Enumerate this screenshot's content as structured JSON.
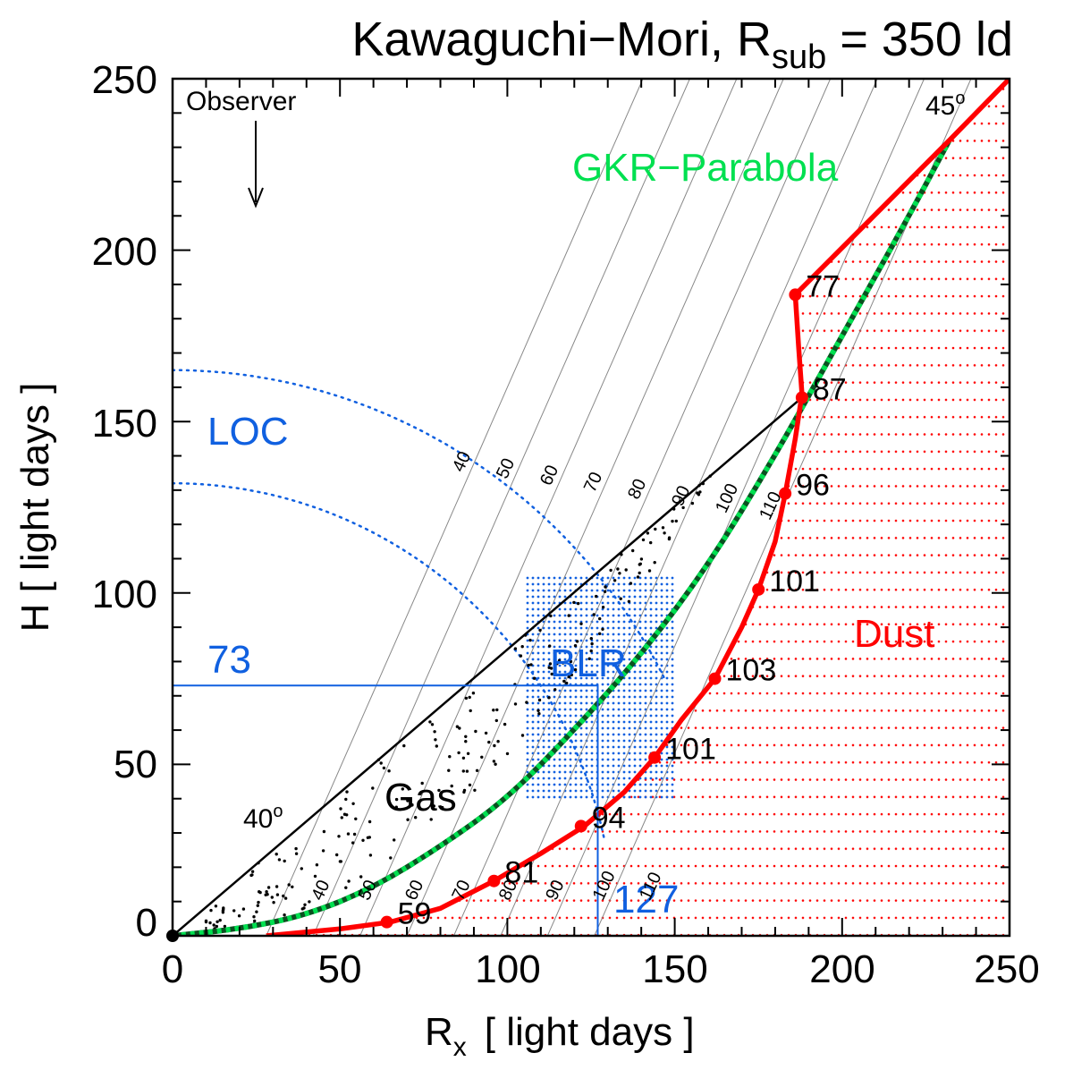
{
  "chart_data": {
    "type": "line",
    "title": {
      "main": "Kawaguchi−Mori, R",
      "sub": "sub",
      "rest": " = 350 ld"
    },
    "xlabel": {
      "main": "R",
      "sub": "x",
      "rest": "[ light days ]"
    },
    "ylabel": "H  [ light days ]",
    "xlim": [
      0,
      250
    ],
    "ylim": [
      0,
      250
    ],
    "xticks": [
      "0",
      "50",
      "100",
      "150",
      "200",
      "250"
    ],
    "yticks": [
      "0",
      "50",
      "100",
      "150",
      "200",
      "250"
    ],
    "colors": {
      "dust": "#ff0000",
      "gkr": "#00e050",
      "blue": "#1060e0",
      "black": "#000000",
      "grey": "#888888"
    },
    "series": [
      {
        "name": "Dust boundary",
        "x": [
          28,
          50,
          65,
          80,
          96,
          110,
          123,
          135,
          144,
          152,
          162,
          170,
          175,
          180,
          183,
          186,
          188,
          187,
          186,
          232,
          250
        ],
        "y": [
          0,
          2,
          4,
          8,
          16,
          24,
          32,
          42,
          52,
          63,
          75,
          90,
          101,
          115,
          129,
          145,
          158,
          172,
          187,
          232,
          250
        ]
      },
      {
        "name": "GKR-Parabola",
        "x": [
          0,
          20,
          40,
          60,
          80,
          100,
          120,
          140,
          160,
          180,
          200,
          220,
          232
        ],
        "y": [
          0,
          2,
          6,
          14,
          26,
          40,
          60,
          82,
          108,
          140,
          175,
          210,
          232
        ]
      }
    ],
    "dust_markers": [
      {
        "x": 64,
        "y": 4,
        "label": "59"
      },
      {
        "x": 96,
        "y": 16,
        "label": "81"
      },
      {
        "x": 122,
        "y": 32,
        "label": "94"
      },
      {
        "x": 144,
        "y": 52,
        "label": "101"
      },
      {
        "x": 162,
        "y": 75,
        "label": "103"
      },
      {
        "x": 175,
        "y": 101,
        "label": "101"
      },
      {
        "x": 183,
        "y": 129,
        "label": "96"
      },
      {
        "x": 188,
        "y": 157,
        "label": "87"
      },
      {
        "x": 186,
        "y": 187,
        "label": "77"
      }
    ],
    "isodelay_labels": [
      "40",
      "50",
      "60",
      "70",
      "80",
      "90",
      "100",
      "110"
    ],
    "annotations": {
      "observer": "Observer",
      "gkr_label": "GKR−Parabola",
      "loc": "LOC",
      "blr": "BLR",
      "dust": "Dust",
      "gas": "Gas",
      "angle40": "40",
      "angle45": "45",
      "deg": "o",
      "h_value": "73",
      "r_value": "127"
    },
    "blr_marker": {
      "x": 127,
      "y": 73
    }
  }
}
